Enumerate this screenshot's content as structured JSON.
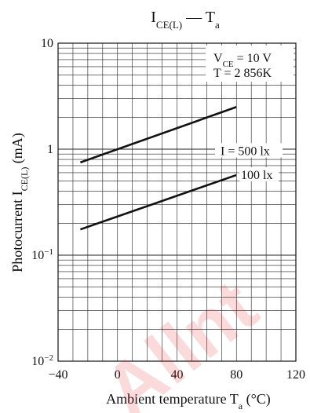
{
  "chart_data": {
    "type": "line",
    "title": {
      "base": "I",
      "sub": "CE(L)",
      "sep": " — ",
      "base2": "T",
      "sub2": "a"
    },
    "xlabel": {
      "base": "Ambient temperature  T",
      "sub": "a",
      "tail": " (°C)"
    },
    "ylabel": {
      "base": "Photocurrent  I",
      "sub": "CE(L)",
      "tail": " (mA)"
    },
    "xlim": [
      -40,
      120
    ],
    "ylim": [
      0.01,
      10
    ],
    "yscale": "log",
    "grid": true,
    "x_ticks": [
      -40,
      0,
      40,
      80,
      120
    ],
    "x_tick_labels": [
      "−40",
      "0",
      "40",
      "80",
      "120"
    ],
    "y_ticks": [
      0.01,
      0.1,
      1,
      10
    ],
    "y_tick_labels": [
      {
        "base": "10",
        "sup": "−2"
      },
      {
        "base": "10",
        "sup": "−1"
      },
      {
        "base": "1",
        "sup": ""
      },
      {
        "base": "10",
        "sup": ""
      }
    ],
    "conditions": [
      {
        "base": "V",
        "sub": "CE",
        "tail": " = 10 V"
      },
      {
        "base": "T = 2 856K",
        "sub": "",
        "tail": ""
      }
    ],
    "series": [
      {
        "name": "I = 500 lx",
        "x": [
          -25,
          80
        ],
        "y": [
          0.75,
          2.5
        ]
      },
      {
        "name": "100 lx",
        "x": [
          -25,
          80
        ],
        "y": [
          0.175,
          0.57
        ]
      }
    ],
    "line_color": "#111111"
  },
  "watermark": "Allnt"
}
